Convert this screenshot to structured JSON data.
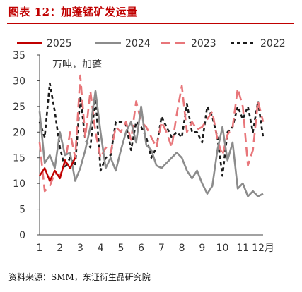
{
  "header": {
    "title": "图表 12：加蓬锰矿发运量"
  },
  "footer": {
    "source": "资料来源：SMM，东证衍生品研究院"
  },
  "chart_data": {
    "type": "line",
    "unit_label": "万吨，加蓬",
    "x_tick_labels": [
      "1",
      "2",
      "3",
      "4",
      "5",
      "6",
      "7",
      "8",
      "9",
      "10",
      "11",
      "12月"
    ],
    "xlim": [
      1,
      12
    ],
    "ylim": [
      0,
      35
    ],
    "y_ticks": [
      0,
      5,
      10,
      15,
      20,
      25,
      30,
      35
    ],
    "grid": false,
    "legend_position": "top",
    "series": [
      {
        "name": "2025",
        "color": "#c00000",
        "dash": "solid",
        "x": [
          1.0,
          1.25,
          1.5,
          1.75,
          2.0,
          2.25,
          2.5,
          2.75
        ],
        "y": [
          11.5,
          13.0,
          10.5,
          12.5,
          11.0,
          14.5,
          13.0,
          15.0
        ]
      },
      {
        "name": "2024",
        "color": "#8c8c8c",
        "dash": "solid",
        "x": [
          1.0,
          1.25,
          1.5,
          1.75,
          2.0,
          2.25,
          2.5,
          2.75,
          3.0,
          3.25,
          3.5,
          3.75,
          4.0,
          4.25,
          4.5,
          4.75,
          5.0,
          5.25,
          5.5,
          5.75,
          6.0,
          6.25,
          6.5,
          6.75,
          7.0,
          7.25,
          7.5,
          7.75,
          8.0,
          8.25,
          8.5,
          8.75,
          9.0,
          9.25,
          9.5,
          9.75,
          10.0,
          10.25,
          10.5,
          10.75,
          11.0,
          11.25,
          11.5,
          11.75,
          12.0
        ],
        "y": [
          24.0,
          14.0,
          15.5,
          13.0,
          20.0,
          15.5,
          16.0,
          10.5,
          13.0,
          16.5,
          21.0,
          28.0,
          20.0,
          13.0,
          15.0,
          12.5,
          16.5,
          20.0,
          22.0,
          18.0,
          25.0,
          17.5,
          16.5,
          13.5,
          13.0,
          14.0,
          15.0,
          16.0,
          15.0,
          12.5,
          11.0,
          12.5,
          10.0,
          8.0,
          9.5,
          16.5,
          21.0,
          14.5,
          18.0,
          9.0,
          10.0,
          7.5,
          8.5,
          7.5,
          8.0
        ]
      },
      {
        "name": "2023",
        "color": "#e8767a",
        "dash": "dashed",
        "x": [
          1.0,
          1.25,
          1.5,
          1.75,
          2.0,
          2.25,
          2.5,
          2.75,
          3.0,
          3.25,
          3.5,
          3.75,
          4.0,
          4.25,
          4.5,
          4.75,
          5.0,
          5.25,
          5.5,
          5.75,
          6.0,
          6.25,
          6.5,
          6.75,
          7.0,
          7.25,
          7.5,
          7.75,
          8.0,
          8.25,
          8.5,
          8.75,
          9.0,
          9.25,
          9.5,
          9.75,
          10.0,
          10.25,
          10.5,
          10.75,
          11.0,
          11.25,
          11.5,
          11.75,
          12.0
        ],
        "y": [
          18.0,
          8.5,
          9.5,
          12.0,
          11.5,
          14.0,
          20.0,
          15.0,
          31.0,
          19.0,
          28.0,
          20.0,
          15.0,
          17.0,
          16.0,
          21.0,
          20.0,
          22.0,
          18.5,
          26.0,
          22.0,
          21.0,
          19.0,
          17.0,
          22.0,
          20.0,
          17.0,
          23.5,
          29.0,
          20.0,
          22.0,
          20.5,
          21.0,
          22.5,
          24.0,
          18.5,
          15.5,
          19.5,
          21.0,
          28.5,
          25.0,
          13.5,
          16.5,
          26.0,
          22.0
        ]
      },
      {
        "name": "2022",
        "color": "#1a1a1a",
        "dash": "dotted",
        "x": [
          1.0,
          1.25,
          1.5,
          1.75,
          2.0,
          2.25,
          2.5,
          2.75,
          3.0,
          3.25,
          3.5,
          3.75,
          4.0,
          4.25,
          4.5,
          4.75,
          5.0,
          5.25,
          5.5,
          5.75,
          6.0,
          6.25,
          6.5,
          6.75,
          7.0,
          7.25,
          7.5,
          7.75,
          8.0,
          8.25,
          8.5,
          8.75,
          9.0,
          9.25,
          9.5,
          9.75,
          10.0,
          10.25,
          10.5,
          10.75,
          11.0,
          11.25,
          11.5,
          11.75,
          12.0
        ],
        "y": [
          22.0,
          19.0,
          29.5,
          24.0,
          17.0,
          13.0,
          15.0,
          13.5,
          27.0,
          18.5,
          17.0,
          27.0,
          12.5,
          15.0,
          15.5,
          22.0,
          22.0,
          21.5,
          16.5,
          22.0,
          21.0,
          19.0,
          15.0,
          17.0,
          23.0,
          21.0,
          19.0,
          20.0,
          19.0,
          25.5,
          20.0,
          20.0,
          18.0,
          25.0,
          23.0,
          19.0,
          11.5,
          20.0,
          21.0,
          25.0,
          22.5,
          25.0,
          20.0,
          26.0,
          19.0
        ]
      }
    ]
  }
}
